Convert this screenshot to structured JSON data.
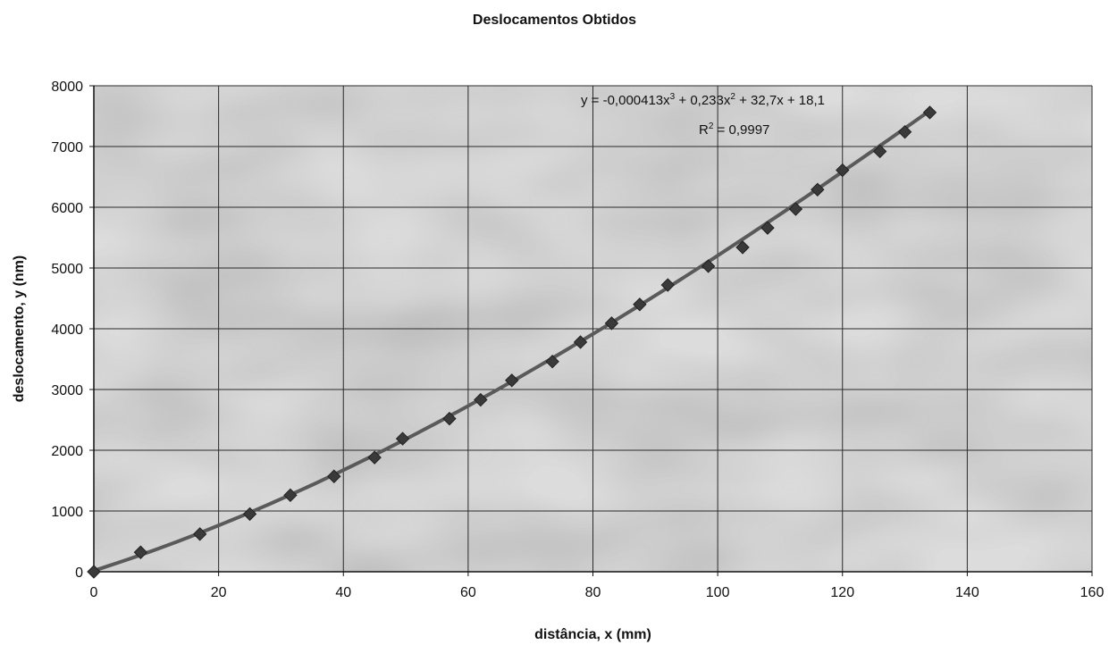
{
  "chart_data": {
    "type": "scatter",
    "title": "Deslocamentos Obtidos",
    "xlabel": "distância, x (mm)",
    "ylabel": "deslocamento, y (nm)",
    "xlim": [
      0,
      160
    ],
    "ylim": [
      0,
      8000
    ],
    "xticks": [
      "0",
      "20",
      "40",
      "60",
      "80",
      "100",
      "120",
      "140",
      "160"
    ],
    "yticks": [
      "0",
      "1000",
      "2000",
      "3000",
      "4000",
      "5000",
      "6000",
      "7000",
      "8000"
    ],
    "grid": true,
    "marker": "diamond",
    "series": [
      {
        "x": [
          0,
          7.5,
          17,
          25,
          31.5,
          38.5,
          45,
          49.5,
          57,
          62,
          67,
          73.5,
          78,
          83,
          87.5,
          92,
          98.5,
          104,
          108,
          112.5,
          116,
          120,
          126,
          130,
          134
        ],
        "y": [
          0,
          320,
          620,
          950,
          1260,
          1570,
          1880,
          2190,
          2520,
          2830,
          3150,
          3460,
          3780,
          4090,
          4400,
          4720,
          5030,
          5340,
          5660,
          5970,
          6290,
          6610,
          6920,
          7240,
          7560
        ]
      }
    ],
    "trendline": {
      "type": "polynomial",
      "coefficients": [
        -0.000413,
        0.233,
        32.7,
        18.1
      ],
      "x_range": [
        0,
        134
      ],
      "equation_label": {
        "prefix": "y = -0,000413x",
        "sup1": "3",
        "mid": " + 0,233x",
        "sup2": "2",
        "suffix": " + 32,7x + 18,1"
      },
      "r2_label": {
        "prefix": "R",
        "sup": "2",
        "suffix": " = 0,9997"
      }
    }
  }
}
